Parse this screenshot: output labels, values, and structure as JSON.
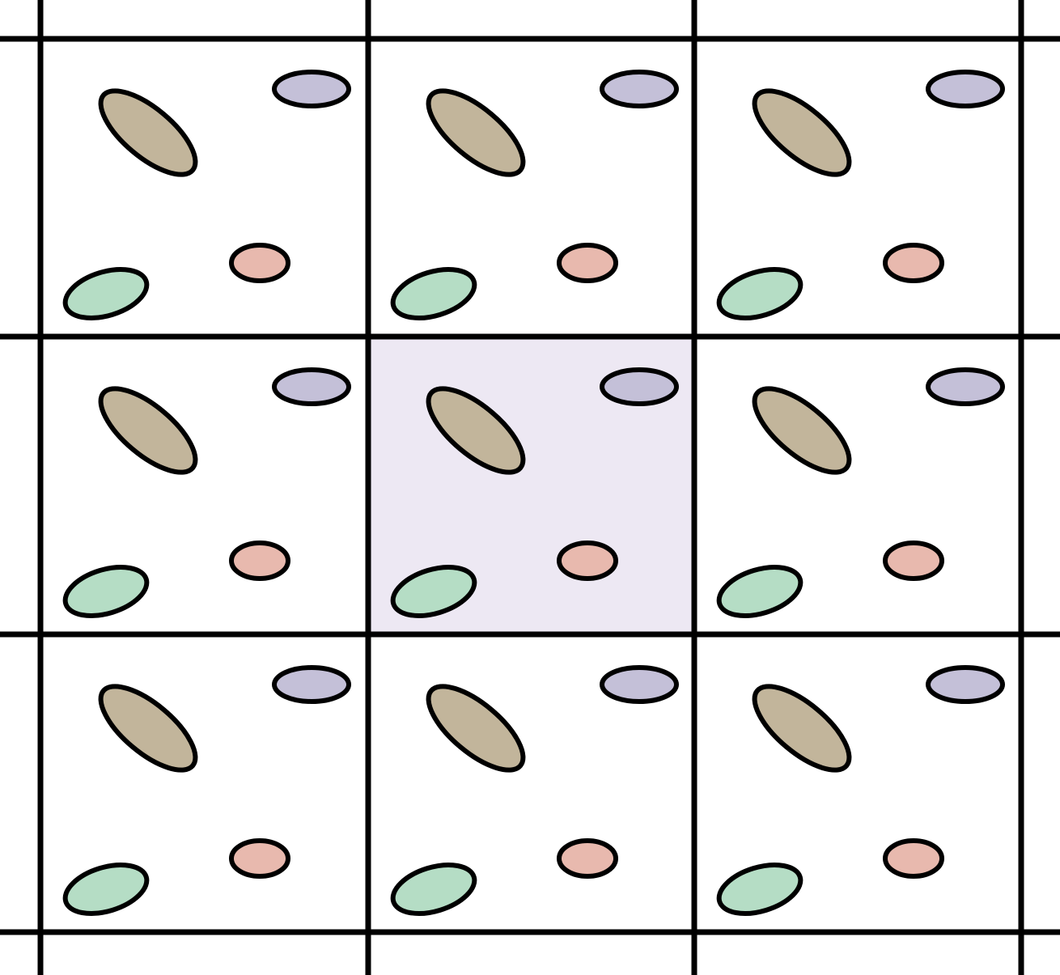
{
  "diagram": {
    "rows": 3,
    "cols": 3,
    "highlighted_cell": {
      "row": 1,
      "col": 1
    },
    "colors": {
      "background": "#ffffff",
      "highlight_fill": "#ede8f3",
      "grid_line": "#000000",
      "outline": "#000000"
    },
    "particles": [
      {
        "name": "tan-ellipse",
        "color": "#c2b59b"
      },
      {
        "name": "lavender-ellipse",
        "color": "#c4c0d8"
      },
      {
        "name": "pink-ellipse",
        "color": "#e8b9ae"
      },
      {
        "name": "green-ellipse",
        "color": "#b5ddc5"
      }
    ]
  }
}
